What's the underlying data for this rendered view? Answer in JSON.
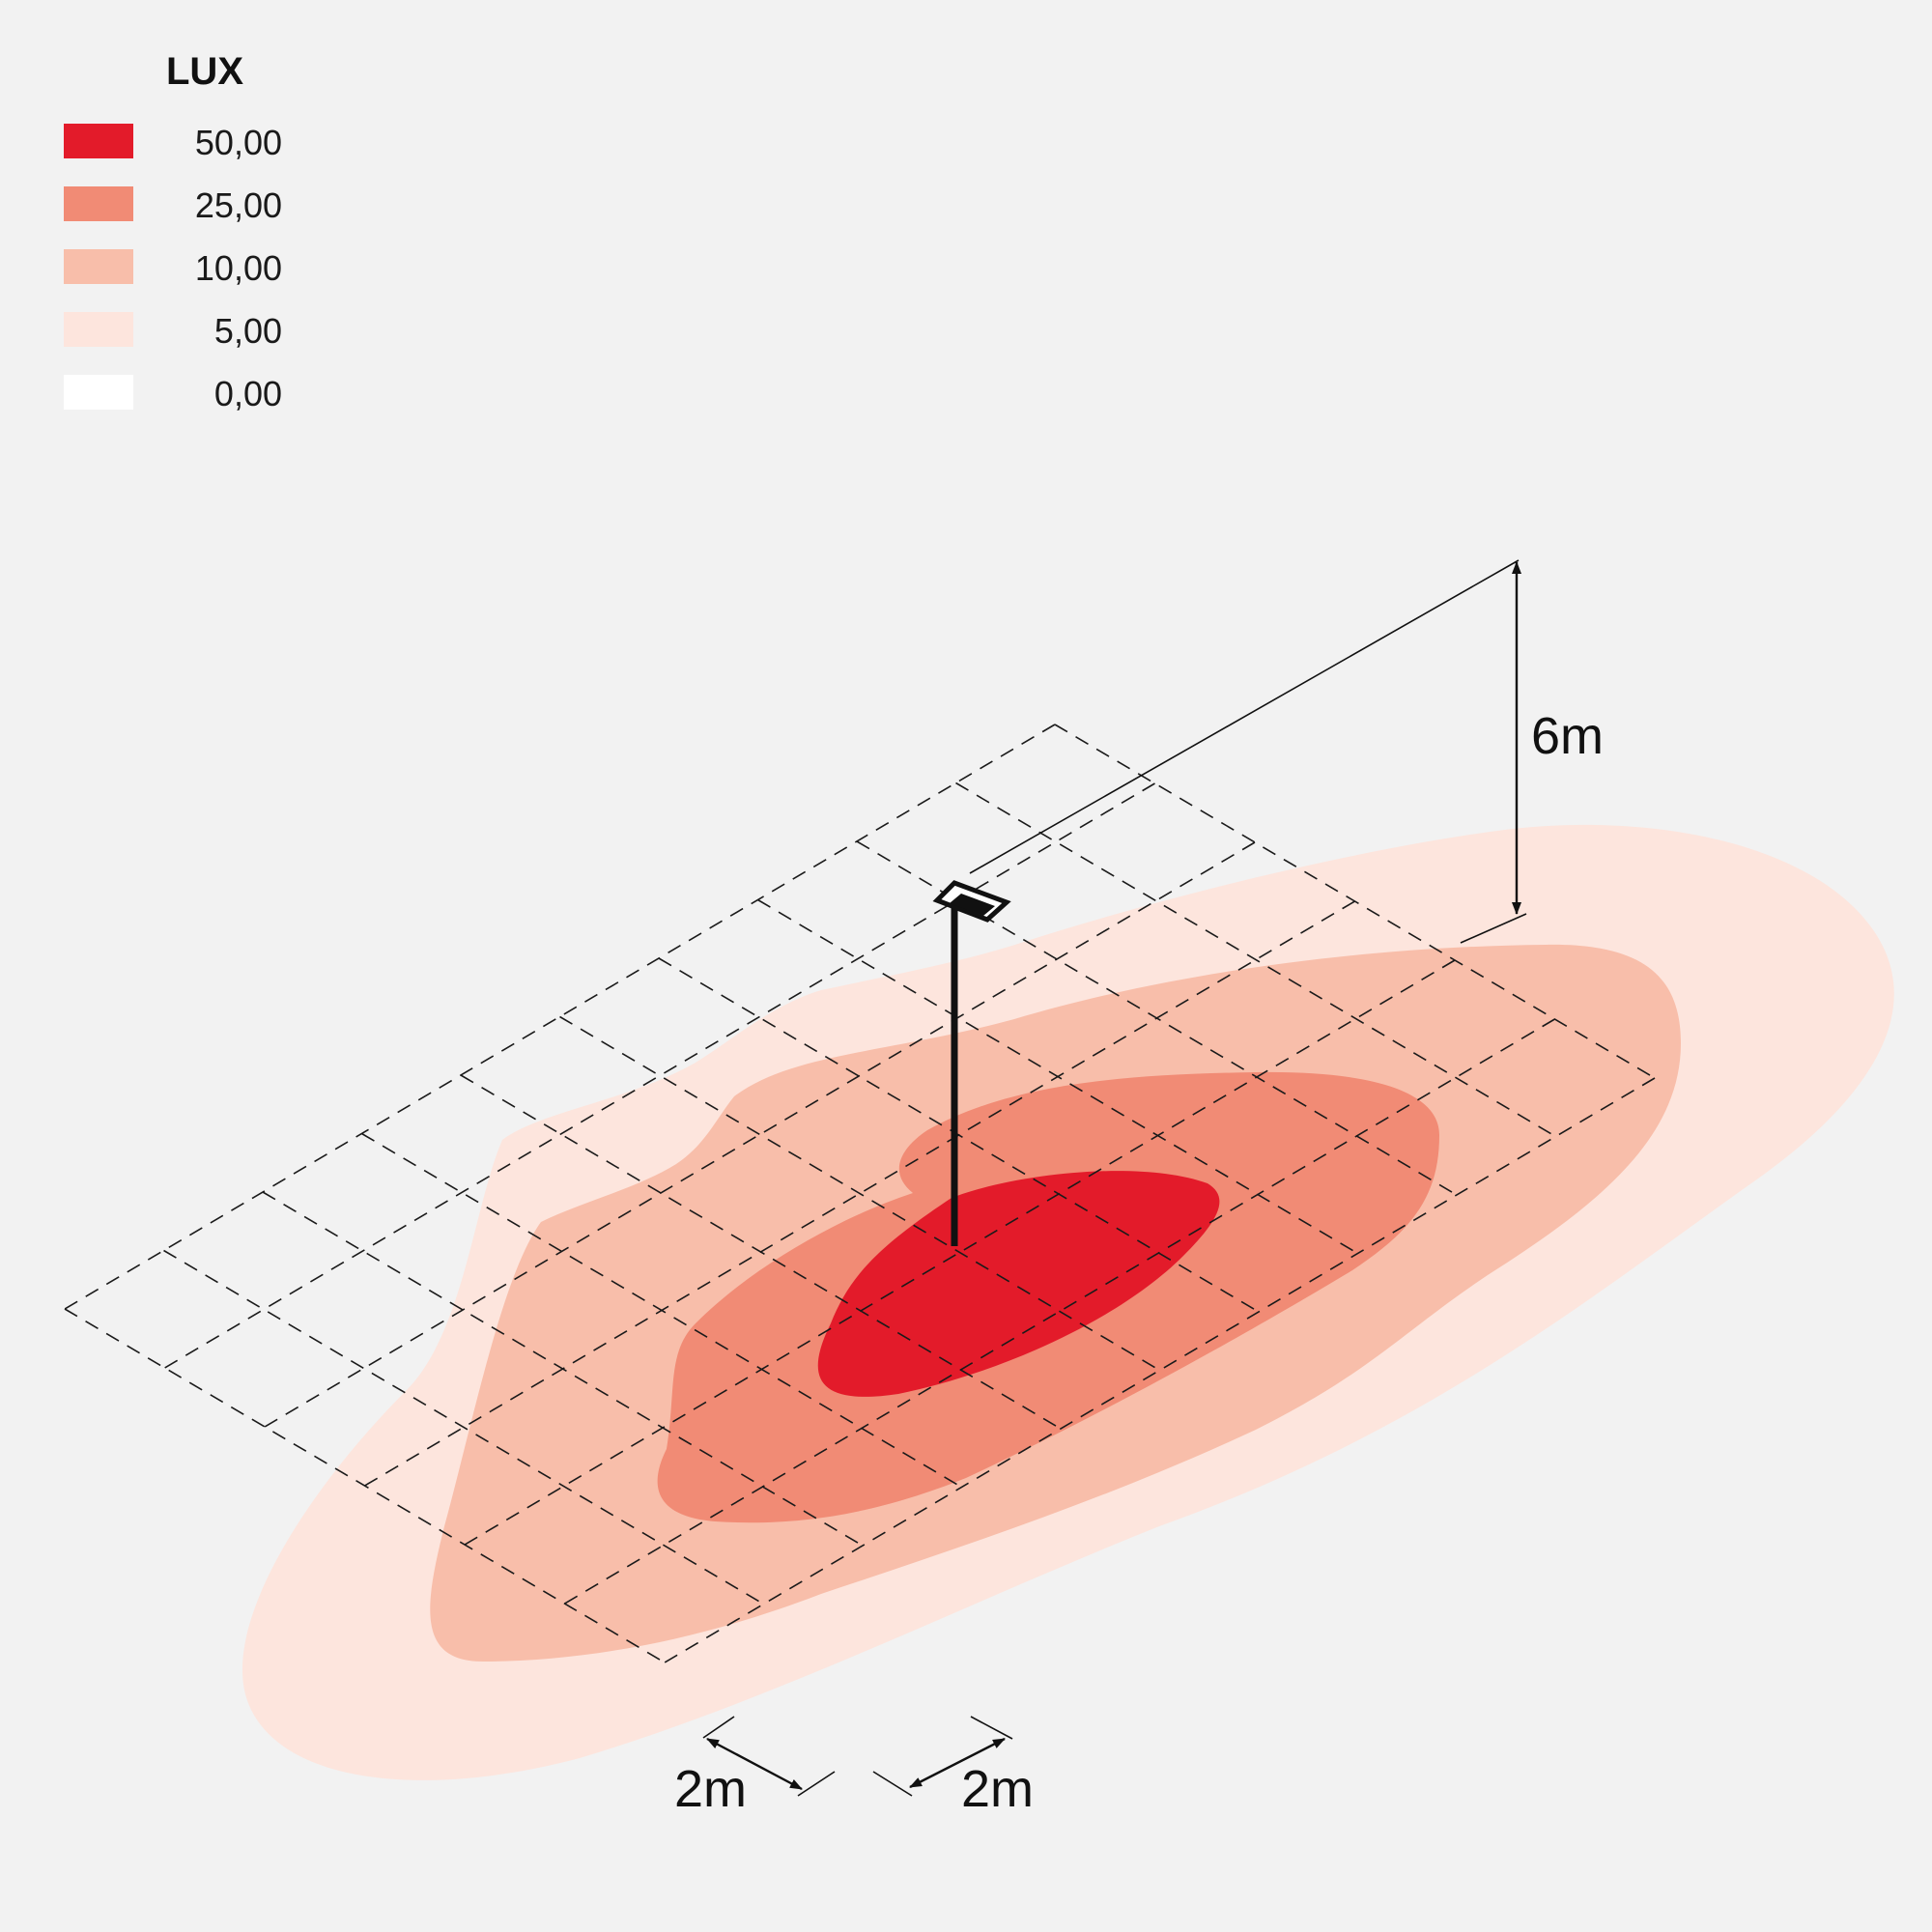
{
  "legend": {
    "title": "LUX",
    "items": [
      {
        "value": "50,00",
        "color": "#e31b2a"
      },
      {
        "value": "25,00",
        "color": "#f18b75"
      },
      {
        "value": "10,00",
        "color": "#f8beaa"
      },
      {
        "value": "5,00",
        "color": "#fde5dd"
      },
      {
        "value": "0,00",
        "color": "#ffffff"
      }
    ]
  },
  "dimensions": {
    "height": "6m",
    "grid_width": "2m",
    "grid_depth": "2m"
  }
}
